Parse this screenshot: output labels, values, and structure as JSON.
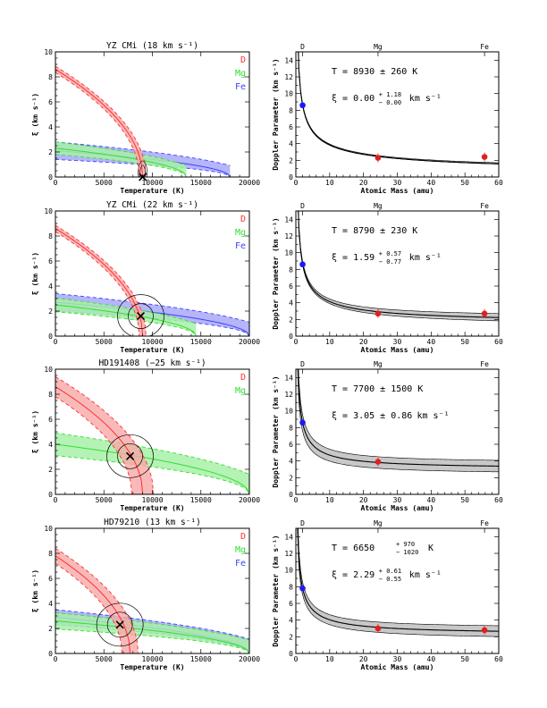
{
  "colors": {
    "D": "#ff3030",
    "Mg": "#30e030",
    "Fe": "#4040ff",
    "D_fill": "#f8a8a8",
    "Mg_fill": "#a8f0a8",
    "Fe_fill": "#a8a8f8",
    "band": "#c8c8c8"
  },
  "left_axes": {
    "xlabel": "Temperature (K)",
    "ylabel": "ξ (km s⁻¹)",
    "xlim": [
      0,
      20000
    ],
    "ylim": [
      0,
      10
    ],
    "xticks": [
      "0",
      "5000",
      "10000",
      "15000",
      "20000"
    ],
    "yticks": [
      "0",
      "2",
      "4",
      "6",
      "8",
      "10"
    ]
  },
  "right_axes": {
    "xlabel": "Atomic Mass (amu)",
    "ylabel": "Doppler Parameter (km s⁻¹)",
    "xlim": [
      0,
      60
    ],
    "ylim": [
      0,
      15
    ],
    "xticks": [
      "0",
      "10",
      "20",
      "30",
      "40",
      "50",
      "60"
    ],
    "yticks": [
      "0",
      "2",
      "4",
      "6",
      "8",
      "10",
      "12",
      "14"
    ],
    "top_labels": [
      "D",
      "Mg",
      "Fe"
    ],
    "top_label_x": [
      2,
      24.3,
      55.8
    ]
  },
  "chart_data": [
    {
      "type": "line",
      "panel": "left",
      "title": "YZ CMi (18 km s⁻¹)",
      "legend": [
        "D",
        "Mg",
        "Fe"
      ],
      "best_fit": [
        9000,
        0.0
      ],
      "D": {
        "T_at_zero": 9000,
        "xi_at_zero": 8.6
      },
      "Mg": {
        "xi_at_zero": 2.3,
        "T_end": 13500,
        "width": 0.5
      },
      "Fe": {
        "xi_at_zero": 2.1,
        "T_end": 18000,
        "width": 0.7
      },
      "D_width": 0.25
    },
    {
      "type": "line",
      "panel": "right",
      "T_text": "T = 8930 ± 260 K",
      "xi_main": "ξ = 0.00",
      "xi_sup": "+ 1.18",
      "xi_sub": "− 0.00",
      "xi_unit": "km s⁻¹",
      "points": [
        {
          "el": "D",
          "mass": 2,
          "b": 8.6
        },
        {
          "el": "Mg",
          "mass": 24.3,
          "b": 2.3
        },
        {
          "el": "Fe",
          "mass": 55.8,
          "b": 2.4
        }
      ],
      "T": 8930,
      "xi": 0.0
    },
    {
      "type": "line",
      "panel": "left",
      "title": "YZ CMi (22 km s⁻¹)",
      "legend": [
        "D",
        "Mg",
        "Fe"
      ],
      "best_fit": [
        8800,
        1.6
      ],
      "D": {
        "T_at_zero": 9000,
        "xi_at_zero": 8.6
      },
      "Mg": {
        "xi_at_zero": 2.5,
        "T_end": 14500,
        "width": 0.55
      },
      "Fe": {
        "xi_at_zero": 2.7,
        "T_end": 20000,
        "width": 0.7
      },
      "D_width": 0.25
    },
    {
      "type": "line",
      "panel": "right",
      "T_text": "T = 8790 ± 230 K",
      "xi_main": "ξ = 1.59",
      "xi_sup": "+ 0.57",
      "xi_sub": "− 0.77",
      "xi_unit": "km s⁻¹",
      "points": [
        {
          "el": "D",
          "mass": 2,
          "b": 8.6
        },
        {
          "el": "Mg",
          "mass": 24.3,
          "b": 2.7
        },
        {
          "el": "Fe",
          "mass": 55.8,
          "b": 2.7
        }
      ],
      "T": 8790,
      "xi": 1.59
    },
    {
      "type": "line",
      "panel": "left",
      "title": "HD191408 (−25 km s⁻¹)",
      "legend": [
        "D",
        "Mg"
      ],
      "best_fit": [
        7700,
        3.05
      ],
      "D": {
        "T_at_zero": 9000,
        "xi_at_zero": 8.6
      },
      "Mg": {
        "xi_at_zero": 4.0,
        "T_end": 20000,
        "width": 0.9
      },
      "D_width": 0.8
    },
    {
      "type": "line",
      "panel": "right",
      "T_text": "T = 7700 ± 1500 K",
      "xi_main": "ξ = 3.05 ± 0.86",
      "xi_sup": "",
      "xi_sub": "",
      "xi_unit": "km s⁻¹",
      "points": [
        {
          "el": "D",
          "mass": 2,
          "b": 8.6
        },
        {
          "el": "Mg",
          "mass": 24.3,
          "b": 3.9
        }
      ],
      "T": 7700,
      "xi": 3.05
    },
    {
      "type": "line",
      "panel": "left",
      "title": "HD79210 (13 km s⁻¹)",
      "legend": [
        "D",
        "Mg",
        "Fe"
      ],
      "best_fit": [
        6650,
        2.3
      ],
      "D": {
        "T_at_zero": 7700,
        "xi_at_zero": 7.8
      },
      "Mg": {
        "xi_at_zero": 2.6,
        "T_end": 20000,
        "width": 0.65
      },
      "Fe": {
        "xi_at_zero": 2.9,
        "T_end": 20000,
        "width": 0.6
      },
      "D_width": 0.6
    },
    {
      "type": "line",
      "panel": "right",
      "T_text": "T = 6650",
      "T_sup": "+ 970",
      "T_sub": "− 1020",
      "T_unit": "K",
      "xi_main": "ξ = 2.29",
      "xi_sup": "+ 0.61",
      "xi_sub": "− 0.55",
      "xi_unit": "km s⁻¹",
      "points": [
        {
          "el": "D",
          "mass": 2,
          "b": 7.8
        },
        {
          "el": "Mg",
          "mass": 24.3,
          "b": 3.0
        },
        {
          "el": "Fe",
          "mass": 55.8,
          "b": 2.8
        }
      ],
      "T": 6650,
      "xi": 2.29
    }
  ]
}
